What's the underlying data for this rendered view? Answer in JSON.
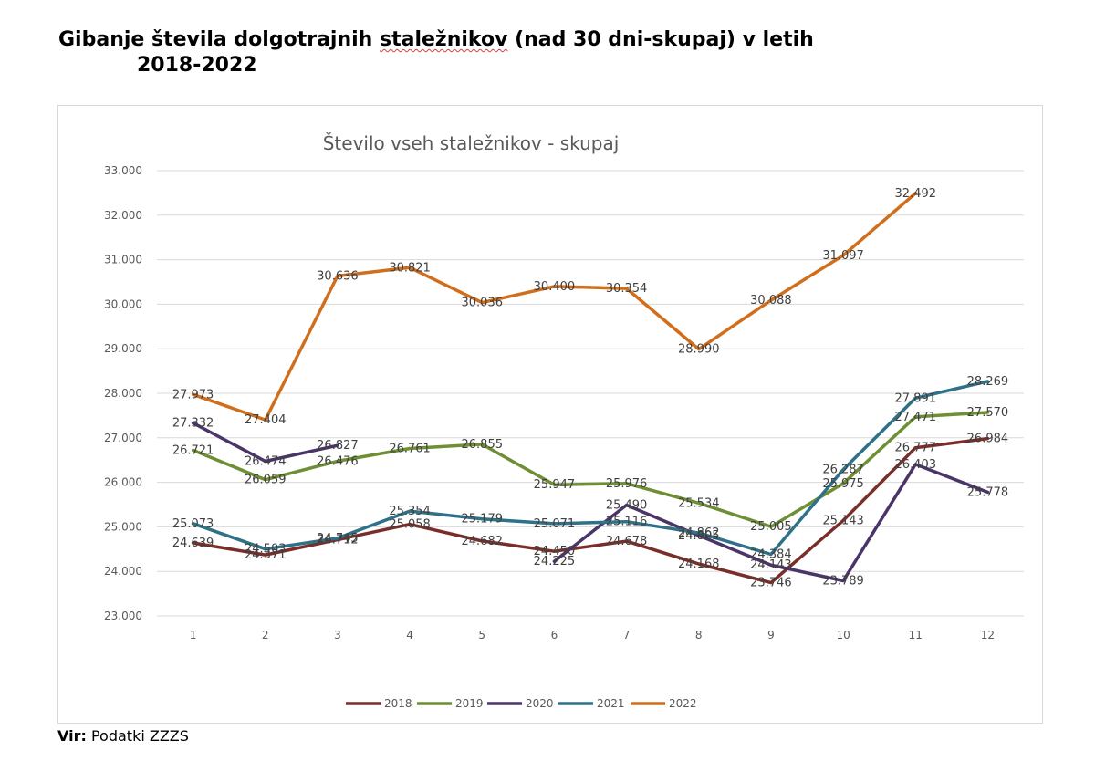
{
  "page": {
    "title_part1": "Gibanje števila dolgotrajnih ",
    "title_underlined": "staležnikov",
    "title_part2": " (nad 30 dni-skupaj) v letih",
    "title_line2": "2018-2022",
    "source_label": "Vir:",
    "source_text": " Podatki ZZZS"
  },
  "colors": {
    "2018": "#7a2e2a",
    "2019": "#6f8f34",
    "2020": "#4a3468",
    "2021": "#2e7188",
    "2022": "#d06e1c",
    "grid": "#d9d9d9",
    "text": "#595959"
  },
  "chart_data": {
    "type": "line",
    "title": "Število vseh staležnikov - skupaj",
    "x": [
      "1",
      "2",
      "3",
      "4",
      "5",
      "6",
      "7",
      "8",
      "9",
      "10",
      "11",
      "12"
    ],
    "ylim": [
      23000,
      33000
    ],
    "yticks": [
      "23.000",
      "24.000",
      "25.000",
      "26.000",
      "27.000",
      "28.000",
      "29.000",
      "30.000",
      "31.000",
      "32.000",
      "33.000"
    ],
    "grid": true,
    "legend": "bottom",
    "series": [
      {
        "name": "2018",
        "values": [
          24639,
          24371,
          24712,
          25058,
          24682,
          24450,
          24678,
          24168,
          23746,
          25143,
          26777,
          26984
        ],
        "labels": [
          "24.639",
          "24.371",
          "24.712",
          "25.058",
          "24.682",
          "24.450",
          "24.678",
          "24.168",
          "23.746",
          "25.143",
          "26.777",
          "26.984"
        ]
      },
      {
        "name": "2019",
        "values": [
          26721,
          26059,
          26476,
          26761,
          26855,
          25947,
          25976,
          25534,
          25005,
          25975,
          27471,
          27570
        ],
        "labels": [
          "26.721",
          "26.059",
          "26.476",
          "26.761",
          "26.855",
          "25.947",
          "25.976",
          "25.534",
          "25.005",
          "25.975",
          "27.471",
          "27.570"
        ]
      },
      {
        "name": "2020",
        "values": [
          27332,
          26474,
          26827,
          null,
          null,
          24225,
          25490,
          24805,
          24143,
          23789,
          26403,
          25778
        ],
        "labels": [
          "27.332",
          "26.474",
          "26.827",
          null,
          null,
          "24.225",
          "25.490",
          "24.805",
          "24.143",
          "23.789",
          "26.403",
          "25.778"
        ]
      },
      {
        "name": "2021",
        "values": [
          25073,
          24503,
          24745,
          25354,
          25179,
          25071,
          25116,
          24862,
          24384,
          26287,
          27891,
          28269
        ],
        "labels": [
          "25.073",
          "24.503",
          "24.745",
          "25.354",
          "25.179",
          "25.071",
          "25.116",
          "24.862",
          "24.384",
          "26.287",
          "27.891",
          "28.269"
        ]
      },
      {
        "name": "2022",
        "values": [
          27973,
          27404,
          30636,
          30821,
          30036,
          30400,
          30354,
          28990,
          30088,
          31097,
          32492,
          null
        ],
        "labels": [
          "27.973",
          "27.404",
          "30.636",
          "30.821",
          "30.036",
          "30.400",
          "30.354",
          "28.990",
          "30.088",
          "31.097",
          "32.492",
          null
        ]
      }
    ]
  }
}
